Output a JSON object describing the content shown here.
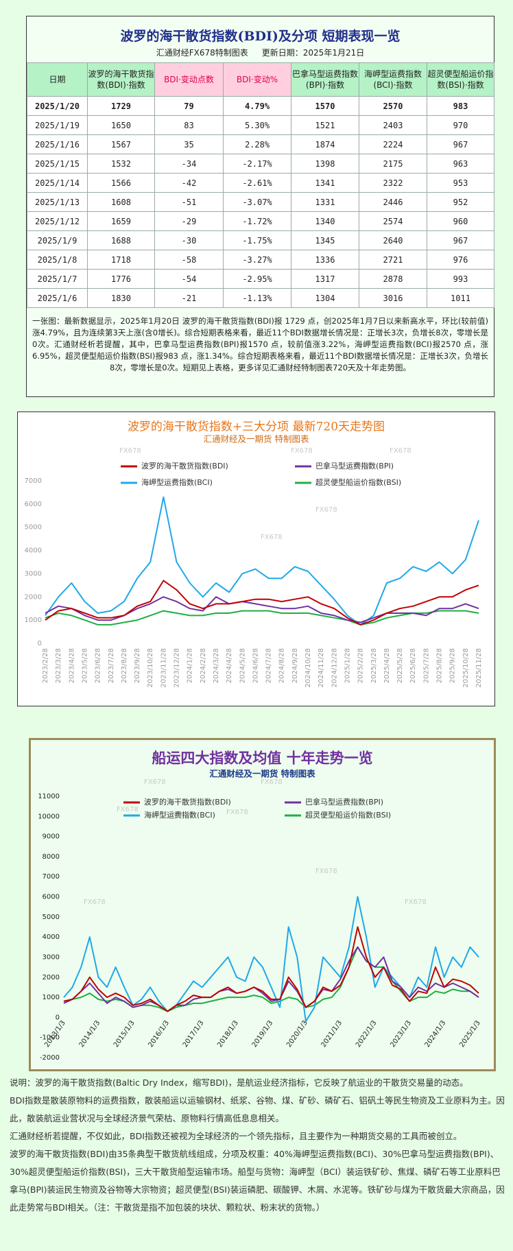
{
  "header": {
    "title": "波罗的海干散货指数(BDI)及分项  短期表现一览",
    "maker": "汇通财经FX678特制图表",
    "update": "更新日期：2025年1月21日"
  },
  "table": {
    "columns": [
      "日期",
      "波罗的海干散货指数(BDI)·指数",
      "BDI·变动点数",
      "BDI·变动%",
      "巴拿马型运费指数(BPI)·指数",
      "海岬型运费指数(BCI)·指数",
      "超灵便型船运价指数(BSI)·指数"
    ],
    "rows": [
      [
        "2025/1/20",
        "1729",
        "79",
        "4.79%",
        "1570",
        "2570",
        "983"
      ],
      [
        "2025/1/19",
        "1650",
        "83",
        "5.30%",
        "1521",
        "2403",
        "970"
      ],
      [
        "2025/1/16",
        "1567",
        "35",
        "2.28%",
        "1874",
        "2224",
        "967"
      ],
      [
        "2025/1/15",
        "1532",
        "-34",
        "-2.17%",
        "1398",
        "2175",
        "963"
      ],
      [
        "2025/1/14",
        "1566",
        "-42",
        "-2.61%",
        "1341",
        "2322",
        "953"
      ],
      [
        "2025/1/13",
        "1608",
        "-51",
        "-3.07%",
        "1331",
        "2446",
        "952"
      ],
      [
        "2025/1/12",
        "1659",
        "-29",
        "-1.72%",
        "1340",
        "2574",
        "960"
      ],
      [
        "2025/1/9",
        "1688",
        "-30",
        "-1.75%",
        "1345",
        "2640",
        "967"
      ],
      [
        "2025/1/8",
        "1718",
        "-58",
        "-3.27%",
        "1336",
        "2721",
        "976"
      ],
      [
        "2025/1/7",
        "1776",
        "-54",
        "-2.95%",
        "1317",
        "2878",
        "993"
      ],
      [
        "2025/1/6",
        "1830",
        "-21",
        "-1.13%",
        "1304",
        "3016",
        "1011"
      ]
    ]
  },
  "summary": "一张图：最新数据显示，2025年1月20日 波罗的海干散货指数(BDI)报 1729 点，创2025年1月7日以来新高水平，环比(较前值)涨4.79%，且为连续第3天上涨(含0增长)。综合短期表格来看，最近11个BDI数据增长情况是：正增长3次，负增长8次，零增长是0次。汇通财经析若提醒，其中，巴拿马型运费指数(BPI)报1570 点，较前值涨3.22%，海岬型运费指数(BCI)报2570 点，涨6.95%，超灵便型船运价指数(BSI)报983 点，涨1.34%。综合短期表格来看，最近11个BDI数据增长情况是：正增长3次，负增长8次，零增长是0次。短期见上表格，更多详见汇通财经特制图表720天及十年走势图。",
  "chart_data": [
    {
      "type": "line",
      "title": "波罗的海干散货指数+三大分项  最新720天走势图",
      "subtitle": "汇通财经及一期货  特制图表",
      "watermark": "FX678",
      "grid": false,
      "legend": "top",
      "categories": [
        "2023/2/28",
        "2023/3/28",
        "2023/4/28",
        "2023/5/28",
        "2023/6/28",
        "2023/7/28",
        "2023/8/28",
        "2023/9/28",
        "2023/10/28",
        "2023/11/28",
        "2023/12/28",
        "2024/1/28",
        "2024/2/28",
        "2024/3/28",
        "2024/4/28",
        "2024/5/28",
        "2024/6/28",
        "2024/7/28",
        "2024/8/28",
        "2024/9/28",
        "2024/10/28",
        "2024/11/28",
        "2024/12/28",
        "2025/1/28",
        "2025/2/28",
        "2025/3/28",
        "2025/4/28",
        "2025/5/28",
        "2025/6/28",
        "2025/7/28",
        "2025/8/28",
        "2025/9/28",
        "2025/10/28",
        "2025/11/28"
      ],
      "ylim": [
        0,
        7000
      ],
      "yticks": [
        0,
        1000,
        2000,
        3000,
        4000,
        5000,
        6000,
        7000
      ],
      "series": [
        {
          "name": "波罗的海干散货指数(BDI)",
          "color": "#c00000",
          "values": [
            1000,
            1400,
            1500,
            1300,
            1100,
            1100,
            1200,
            1600,
            1800,
            2700,
            2300,
            1700,
            1500,
            1700,
            1700,
            1800,
            1900,
            1900,
            1800,
            1900,
            2000,
            1700,
            1500,
            1100,
            800,
            1000,
            1300,
            1500,
            1600,
            1800,
            2000,
            2000,
            2300,
            2500
          ]
        },
        {
          "name": "巴拿马型运费指数(BPI)",
          "color": "#7030a0",
          "values": [
            1300,
            1600,
            1500,
            1200,
            1000,
            1000,
            1200,
            1500,
            1700,
            2000,
            1800,
            1500,
            1400,
            2000,
            1700,
            1800,
            1700,
            1600,
            1500,
            1500,
            1600,
            1300,
            1200,
            1000,
            900,
            1100,
            1300,
            1300,
            1300,
            1200,
            1500,
            1500,
            1700,
            1500
          ]
        },
        {
          "name": "海岬型运费指数(BCI)",
          "color": "#1fa8e8",
          "values": [
            1200,
            2000,
            2600,
            1800,
            1300,
            1400,
            1800,
            2800,
            3500,
            6300,
            3500,
            2600,
            2000,
            2600,
            2200,
            3000,
            3200,
            2800,
            2800,
            3300,
            3100,
            2500,
            1900,
            1200,
            800,
            1200,
            2600,
            2800,
            3300,
            3100,
            3500,
            3000,
            3600,
            5300
          ]
        },
        {
          "name": "超灵便型船运价指数(BSI)",
          "color": "#1db040",
          "values": [
            1100,
            1300,
            1200,
            1000,
            800,
            800,
            900,
            1000,
            1200,
            1400,
            1300,
            1200,
            1200,
            1300,
            1300,
            1400,
            1400,
            1400,
            1300,
            1300,
            1300,
            1200,
            1100,
            1000,
            800,
            900,
            1100,
            1200,
            1300,
            1300,
            1400,
            1400,
            1400,
            1300
          ]
        }
      ]
    },
    {
      "type": "line",
      "title": "船运四大指数及均值 十年走势一览",
      "subtitle": "汇通财经及一期货 特制图表",
      "watermark": "FX678",
      "grid": false,
      "legend": "top",
      "categories": [
        "2013/1/3",
        null,
        null,
        null,
        "2014/1/3",
        null,
        null,
        null,
        "2015/1/3",
        null,
        null,
        null,
        "2016/1/3",
        null,
        null,
        null,
        "2017/1/3",
        null,
        null,
        null,
        "2018/1/3",
        null,
        null,
        null,
        "2019/1/3",
        null,
        null,
        null,
        "2020/1/3",
        null,
        null,
        null,
        "2021/1/3",
        null,
        null,
        null,
        "2022/1/3",
        null,
        null,
        null,
        "2023/1/3",
        null,
        null,
        null,
        "2024/1/3",
        null,
        null,
        null,
        "2025/1/3"
      ],
      "ylim": [
        -2000,
        11000
      ],
      "yticks": [
        -2000,
        -1000,
        0,
        1000,
        2000,
        3000,
        4000,
        5000,
        6000,
        7000,
        8000,
        9000,
        10000,
        11000
      ],
      "series": [
        {
          "name": "波罗的海干散货指数(BDI)",
          "color": "#c00000",
          "values": [
            800,
            900,
            1300,
            2000,
            1400,
            1000,
            1200,
            1000,
            600,
            700,
            900,
            600,
            300,
            600,
            800,
            1100,
            1000,
            1000,
            1300,
            1500,
            1200,
            1300,
            1500,
            1300,
            900,
            900,
            2000,
            1400,
            500,
            800,
            1500,
            1300,
            1600,
            2500,
            4500,
            3000,
            2000,
            2500,
            1600,
            1400,
            800,
            1300,
            1200,
            2500,
            1500,
            1900,
            1800,
            1600,
            1200
          ]
        },
        {
          "name": "巴拿马型运费指数(BPI)",
          "color": "#7030a0",
          "values": [
            700,
            900,
            1300,
            1700,
            1200,
            700,
            1000,
            800,
            500,
            600,
            800,
            600,
            300,
            600,
            600,
            900,
            1000,
            1000,
            1300,
            1400,
            1200,
            1300,
            1500,
            1200,
            800,
            900,
            1800,
            1300,
            500,
            800,
            1400,
            1300,
            1900,
            2800,
            3500,
            2800,
            2500,
            3000,
            1800,
            1500,
            1000,
            1500,
            1300,
            1700,
            1500,
            1700,
            1500,
            1300,
            1000
          ]
        },
        {
          "name": "海岬型运费指数(BCI)",
          "color": "#1fa8e8",
          "values": [
            1000,
            1500,
            2500,
            4000,
            2000,
            1500,
            2500,
            1500,
            600,
            900,
            1500,
            800,
            300,
            600,
            1200,
            1800,
            1500,
            2000,
            2500,
            3000,
            2000,
            1800,
            3000,
            2500,
            1500,
            500,
            4500,
            3000,
            -200,
            500,
            3000,
            2500,
            2000,
            3500,
            6000,
            4000,
            1500,
            2500,
            2000,
            1500,
            1000,
            2000,
            1500,
            3500,
            2000,
            3000,
            2500,
            3500,
            3000
          ]
        },
        {
          "name": "超灵便型船运价指数(BSI)",
          "color": "#1db040",
          "values": [
            800,
            900,
            1000,
            1200,
            900,
            800,
            900,
            800,
            500,
            600,
            600,
            500,
            300,
            500,
            600,
            700,
            700,
            800,
            900,
            1000,
            1000,
            1000,
            1100,
            1000,
            700,
            800,
            1000,
            900,
            500,
            600,
            900,
            1000,
            1500,
            2500,
            3500,
            2800,
            2500,
            2500,
            1800,
            1300,
            800,
            1000,
            1000,
            1300,
            1200,
            1400,
            1300,
            1300,
            1000
          ]
        }
      ]
    }
  ],
  "notes": [
    "说明：波罗的海干散货指数(Baltic Dry Index，缩写BDI)，是航运业经济指标，它反映了航运业的干散货交易量的动态。",
    "BDI指数是散装原物料的运费指数，散装船运以运输钢材、纸浆、谷物、煤、矿砂、磷矿石、铝矾土等民生物资及工业原料为主。因此，散装航运业营状况与全球经济景气荣枯、原物料行情高低息息相关。",
    "汇通财经析若提醒，不仅如此，BDI指数还被视为全球经济的一个领先指标，且主要作为一种期货交易的工具而被创立。",
    "波罗的海干散货指数(BDI)由35条典型干散货航线组成，分项及权重：40%海岬型运费指数(BCI)、30%巴拿马型运费指数(BPI)、30%超灵便型船运价指数(BSI)，三大干散货船型运输市场。船型与货物：海岬型（BCI）装运铁矿砂、焦煤、磷矿石等工业原料巴拿马(BPI)装运民生物资及谷物等大宗物资；超灵便型(BSI)装运磷肥、碳酸钾、木屑、水泥等。铁矿砂与煤为干散货最大宗商品，因此走势常与BDI相关。（注：干散货是指不加包装的块状、颗粒状、粉末状的货物。）"
  ]
}
